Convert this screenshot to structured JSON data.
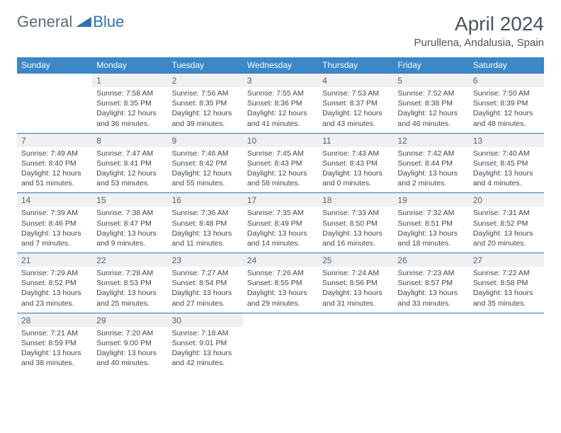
{
  "logo": {
    "general": "General",
    "blue": "Blue"
  },
  "title": "April 2024",
  "location": "Purullena, Andalusia, Spain",
  "colors": {
    "header_bg": "#3b87c8",
    "rule": "#2f72b8",
    "daynum_bg": "#eef0f2",
    "text": "#3f474f",
    "muted": "#5a646e",
    "title_text": "#4a5560"
  },
  "day_headers": [
    "Sunday",
    "Monday",
    "Tuesday",
    "Wednesday",
    "Thursday",
    "Friday",
    "Saturday"
  ],
  "weeks": [
    [
      null,
      {
        "n": "1",
        "sr": "7:58 AM",
        "ss": "8:35 PM",
        "dl": "12 hours and 36 minutes."
      },
      {
        "n": "2",
        "sr": "7:56 AM",
        "ss": "8:35 PM",
        "dl": "12 hours and 39 minutes."
      },
      {
        "n": "3",
        "sr": "7:55 AM",
        "ss": "8:36 PM",
        "dl": "12 hours and 41 minutes."
      },
      {
        "n": "4",
        "sr": "7:53 AM",
        "ss": "8:37 PM",
        "dl": "12 hours and 43 minutes."
      },
      {
        "n": "5",
        "sr": "7:52 AM",
        "ss": "8:38 PM",
        "dl": "12 hours and 46 minutes."
      },
      {
        "n": "6",
        "sr": "7:50 AM",
        "ss": "8:39 PM",
        "dl": "12 hours and 48 minutes."
      }
    ],
    [
      {
        "n": "7",
        "sr": "7:49 AM",
        "ss": "8:40 PM",
        "dl": "12 hours and 51 minutes."
      },
      {
        "n": "8",
        "sr": "7:47 AM",
        "ss": "8:41 PM",
        "dl": "12 hours and 53 minutes."
      },
      {
        "n": "9",
        "sr": "7:46 AM",
        "ss": "8:42 PM",
        "dl": "12 hours and 55 minutes."
      },
      {
        "n": "10",
        "sr": "7:45 AM",
        "ss": "8:43 PM",
        "dl": "12 hours and 58 minutes."
      },
      {
        "n": "11",
        "sr": "7:43 AM",
        "ss": "8:43 PM",
        "dl": "13 hours and 0 minutes."
      },
      {
        "n": "12",
        "sr": "7:42 AM",
        "ss": "8:44 PM",
        "dl": "13 hours and 2 minutes."
      },
      {
        "n": "13",
        "sr": "7:40 AM",
        "ss": "8:45 PM",
        "dl": "13 hours and 4 minutes."
      }
    ],
    [
      {
        "n": "14",
        "sr": "7:39 AM",
        "ss": "8:46 PM",
        "dl": "13 hours and 7 minutes."
      },
      {
        "n": "15",
        "sr": "7:38 AM",
        "ss": "8:47 PM",
        "dl": "13 hours and 9 minutes."
      },
      {
        "n": "16",
        "sr": "7:36 AM",
        "ss": "8:48 PM",
        "dl": "13 hours and 11 minutes."
      },
      {
        "n": "17",
        "sr": "7:35 AM",
        "ss": "8:49 PM",
        "dl": "13 hours and 14 minutes."
      },
      {
        "n": "18",
        "sr": "7:33 AM",
        "ss": "8:50 PM",
        "dl": "13 hours and 16 minutes."
      },
      {
        "n": "19",
        "sr": "7:32 AM",
        "ss": "8:51 PM",
        "dl": "13 hours and 18 minutes."
      },
      {
        "n": "20",
        "sr": "7:31 AM",
        "ss": "8:52 PM",
        "dl": "13 hours and 20 minutes."
      }
    ],
    [
      {
        "n": "21",
        "sr": "7:29 AM",
        "ss": "8:52 PM",
        "dl": "13 hours and 23 minutes."
      },
      {
        "n": "22",
        "sr": "7:28 AM",
        "ss": "8:53 PM",
        "dl": "13 hours and 25 minutes."
      },
      {
        "n": "23",
        "sr": "7:27 AM",
        "ss": "8:54 PM",
        "dl": "13 hours and 27 minutes."
      },
      {
        "n": "24",
        "sr": "7:26 AM",
        "ss": "8:55 PM",
        "dl": "13 hours and 29 minutes."
      },
      {
        "n": "25",
        "sr": "7:24 AM",
        "ss": "8:56 PM",
        "dl": "13 hours and 31 minutes."
      },
      {
        "n": "26",
        "sr": "7:23 AM",
        "ss": "8:57 PM",
        "dl": "13 hours and 33 minutes."
      },
      {
        "n": "27",
        "sr": "7:22 AM",
        "ss": "8:58 PM",
        "dl": "13 hours and 35 minutes."
      }
    ],
    [
      {
        "n": "28",
        "sr": "7:21 AM",
        "ss": "8:59 PM",
        "dl": "13 hours and 38 minutes."
      },
      {
        "n": "29",
        "sr": "7:20 AM",
        "ss": "9:00 PM",
        "dl": "13 hours and 40 minutes."
      },
      {
        "n": "30",
        "sr": "7:18 AM",
        "ss": "9:01 PM",
        "dl": "13 hours and 42 minutes."
      },
      null,
      null,
      null,
      null
    ]
  ],
  "labels": {
    "sunrise": "Sunrise: ",
    "sunset": "Sunset: ",
    "daylight": "Daylight: "
  }
}
